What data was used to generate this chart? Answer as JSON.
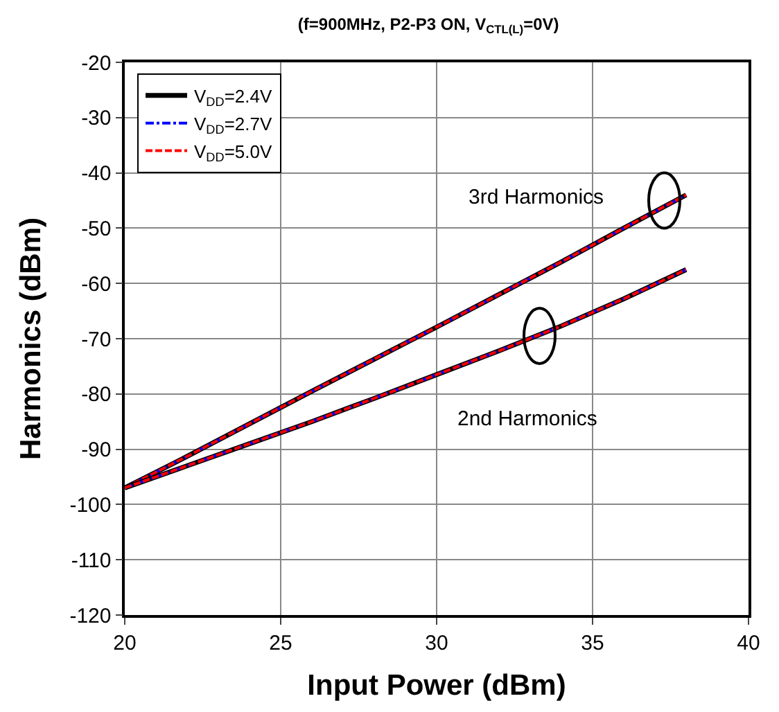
{
  "chart_data": {
    "type": "line",
    "title": "(f=900MHz, P2-P3 ON, V$_{CTL(L)}$=0V)",
    "xlabel": "Input Power (dBm)",
    "ylabel": "Harmonics (dBm)",
    "x": [
      20,
      22,
      24,
      26,
      28,
      30,
      32,
      34,
      36,
      38
    ],
    "series": [
      {
        "name": "V$_{DD}$=2.4V",
        "color": "#000000",
        "line_style": "solid",
        "values": [
          -97,
          -91.3,
          -85.4,
          -79.5,
          -73.7,
          -67.9,
          -62,
          -56.1,
          -50,
          -44
        ]
      },
      {
        "name": "V$_{DD}$=2.7V",
        "color": "#0000ff",
        "line_style": "dashdot",
        "values": [
          -97,
          -91.3,
          -85.4,
          -79.5,
          -73.7,
          -67.9,
          -62,
          -56.1,
          -50,
          -44
        ]
      },
      {
        "name": "V$_{DD}$=5.0V",
        "color": "#ff0000",
        "line_style": "dashed",
        "values": [
          -97,
          -91.3,
          -85.4,
          -79.5,
          -73.7,
          -67.9,
          -62,
          -56.1,
          -50,
          -44
        ]
      },
      {
        "color": "#000000",
        "line_style": "solid",
        "values": [
          -97,
          -93,
          -89,
          -85,
          -80.8,
          -76.5,
          -72.2,
          -67.7,
          -62.8,
          -57.5
        ]
      },
      {
        "color": "#0000ff",
        "line_style": "dashdot",
        "values": [
          -97,
          -93,
          -89,
          -85,
          -80.8,
          -76.5,
          -72.2,
          -67.7,
          -62.8,
          -57.5
        ]
      },
      {
        "color": "#ff0000",
        "line_style": "dashed",
        "values": [
          -97,
          -93,
          -89,
          -85,
          -80.8,
          -76.5,
          -72.2,
          -67.7,
          -62.8,
          -57.5
        ]
      }
    ],
    "annotations": [
      "3rd Harmonics",
      "2nd Harmonics"
    ],
    "xlim": [
      20,
      40
    ],
    "xticks": [
      20,
      25,
      30,
      35,
      40
    ],
    "ylim": [
      -120,
      -20
    ],
    "yticks": [
      -120,
      -110,
      -100,
      -90,
      -80,
      -70,
      -60,
      -50,
      -40,
      -30,
      -20
    ],
    "grid": true,
    "legend": "top left",
    "marker": "none"
  }
}
